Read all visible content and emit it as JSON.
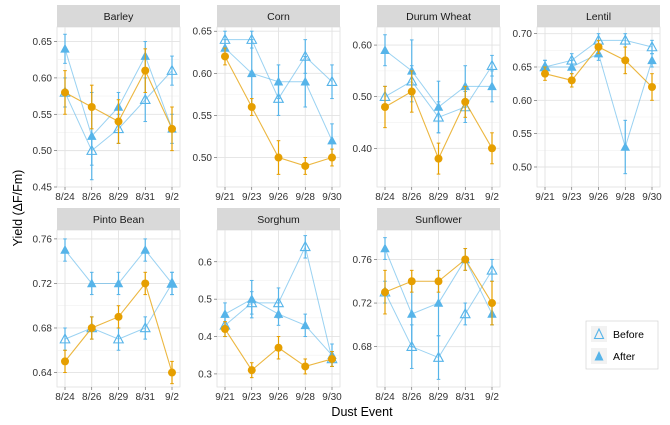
{
  "chart_data": {
    "type": "line",
    "xlabel": "Dust Event",
    "ylabel": "Yield (ΔF/Fm)",
    "legend": {
      "placement": "bottom-right",
      "entries": [
        {
          "name": "Before",
          "marker": "open-triangle"
        },
        {
          "name": "After",
          "marker": "filled-triangle"
        }
      ]
    },
    "colors": {
      "treatment": "#56b4e9",
      "control": "#e69f00"
    },
    "panels": [
      {
        "title": "Barley",
        "x": [
          "8/24",
          "8/26",
          "8/29",
          "8/31",
          "9/2"
        ],
        "ylim": [
          0.45,
          0.67
        ],
        "yticks": [
          0.45,
          0.5,
          0.55,
          0.6,
          0.65
        ],
        "yfmt": 2,
        "series": [
          {
            "name": "Before",
            "marker": "open-triangle",
            "values": [
              0.58,
              0.5,
              0.53,
              0.57,
              0.61
            ],
            "err": [
              0.02,
              0.02,
              0.02,
              0.03,
              0.02
            ]
          },
          {
            "name": "After",
            "marker": "filled-triangle",
            "values": [
              0.64,
              0.52,
              0.56,
              0.63,
              0.53
            ],
            "err": [
              0.02,
              0.06,
              0.02,
              0.02,
              0.02
            ]
          },
          {
            "marker": "circle",
            "values": [
              0.58,
              0.56,
              0.54,
              0.61,
              0.53
            ],
            "err": [
              0.03,
              0.03,
              0.03,
              0.03,
              0.03
            ]
          }
        ]
      },
      {
        "title": "Corn",
        "x": [
          "9/21",
          "9/23",
          "9/26",
          "9/28",
          "9/30"
        ],
        "ylim": [
          0.465,
          0.655
        ],
        "yticks": [
          0.5,
          0.55,
          0.6,
          0.65
        ],
        "yfmt": 2,
        "series": [
          {
            "name": "Before",
            "marker": "open-triangle",
            "values": [
              0.64,
              0.64,
              0.57,
              0.62,
              0.59
            ],
            "err": [
              0.01,
              0.01,
              0.02,
              0.02,
              0.02
            ]
          },
          {
            "name": "After",
            "marker": "filled-triangle",
            "values": [
              0.63,
              0.6,
              0.59,
              0.59,
              0.52
            ],
            "err": [
              0.01,
              0.04,
              0.02,
              0.03,
              0.02
            ]
          },
          {
            "marker": "circle",
            "values": [
              0.62,
              0.56,
              0.5,
              0.49,
              0.5
            ],
            "err": [
              0.01,
              0.01,
              0.02,
              0.01,
              0.01
            ]
          }
        ]
      },
      {
        "title": "Durum Wheat",
        "x": [
          "8/24",
          "8/26",
          "8/29",
          "8/31",
          "9/2"
        ],
        "ylim": [
          0.325,
          0.635
        ],
        "yticks": [
          0.4,
          0.5,
          0.6
        ],
        "yfmt": 2,
        "series": [
          {
            "name": "Before",
            "marker": "open-triangle",
            "values": [
              0.5,
              0.53,
              0.46,
              0.48,
              0.56
            ],
            "err": [
              0.02,
              0.03,
              0.03,
              0.03,
              0.02
            ]
          },
          {
            "name": "After",
            "marker": "filled-triangle",
            "values": [
              0.59,
              0.55,
              0.48,
              0.52,
              0.52
            ],
            "err": [
              0.03,
              0.06,
              0.05,
              0.04,
              0.03
            ]
          },
          {
            "marker": "circle",
            "values": [
              0.48,
              0.51,
              0.38,
              0.49,
              0.4
            ],
            "err": [
              0.04,
              0.04,
              0.03,
              0.03,
              0.03
            ]
          }
        ]
      },
      {
        "title": "Lentil",
        "x": [
          "9/21",
          "9/23",
          "9/26",
          "9/28",
          "9/30"
        ],
        "ylim": [
          0.47,
          0.71
        ],
        "yticks": [
          0.5,
          0.55,
          0.6,
          0.65,
          0.7
        ],
        "yfmt": 2,
        "series": [
          {
            "name": "Before",
            "marker": "open-triangle",
            "values": [
              0.65,
              0.66,
              0.69,
              0.69,
              0.68
            ],
            "err": [
              0.01,
              0.01,
              0.01,
              0.01,
              0.01
            ]
          },
          {
            "name": "After",
            "marker": "filled-triangle",
            "values": [
              0.65,
              0.65,
              0.67,
              0.53,
              0.66
            ],
            "err": [
              0.01,
              0.01,
              0.01,
              0.04,
              0.01
            ]
          },
          {
            "marker": "circle",
            "values": [
              0.64,
              0.63,
              0.68,
              0.66,
              0.62
            ],
            "err": [
              0.01,
              0.01,
              0.01,
              0.02,
              0.02
            ]
          }
        ]
      },
      {
        "title": "Pinto Bean",
        "x": [
          "8/24",
          "8/26",
          "8/29",
          "8/31",
          "9/2"
        ],
        "ylim": [
          0.627,
          0.768
        ],
        "yticks": [
          0.64,
          0.68,
          0.72,
          0.76
        ],
        "yfmt": 2,
        "series": [
          {
            "name": "Before",
            "marker": "open-triangle",
            "values": [
              0.67,
              0.68,
              0.67,
              0.68,
              0.72
            ],
            "err": [
              0.01,
              0.01,
              0.01,
              0.01,
              0.01
            ]
          },
          {
            "name": "After",
            "marker": "filled-triangle",
            "values": [
              0.75,
              0.72,
              0.72,
              0.75,
              0.72
            ],
            "err": [
              0.01,
              0.01,
              0.01,
              0.01,
              0.01
            ]
          },
          {
            "marker": "circle",
            "values": [
              0.65,
              0.68,
              0.69,
              0.72,
              0.64
            ],
            "err": [
              0.01,
              0.01,
              0.01,
              0.01,
              0.01
            ]
          }
        ]
      },
      {
        "title": "Sorghum",
        "x": [
          "9/21",
          "9/23",
          "9/26",
          "9/28",
          "9/30"
        ],
        "ylim": [
          0.265,
          0.685
        ],
        "yticks": [
          0.3,
          0.4,
          0.5,
          0.6
        ],
        "yfmt": 1,
        "series": [
          {
            "name": "Before",
            "marker": "open-triangle",
            "values": [
              0.43,
              0.49,
              0.49,
              0.64,
              0.34
            ],
            "err": [
              0.03,
              0.03,
              0.04,
              0.03,
              0.02
            ]
          },
          {
            "name": "After",
            "marker": "filled-triangle",
            "values": [
              0.46,
              0.5,
              0.46,
              0.43,
              0.35
            ],
            "err": [
              0.03,
              0.05,
              0.03,
              0.03,
              0.03
            ]
          },
          {
            "marker": "circle",
            "values": [
              0.42,
              0.31,
              0.37,
              0.32,
              0.34
            ],
            "err": [
              0.02,
              0.02,
              0.03,
              0.02,
              0.02
            ]
          }
        ]
      },
      {
        "title": "Sunflower",
        "x": [
          "8/24",
          "8/26",
          "8/29",
          "8/31",
          "9/2"
        ],
        "ylim": [
          0.643,
          0.787
        ],
        "yticks": [
          0.68,
          0.72,
          0.76
        ],
        "yfmt": 2,
        "series": [
          {
            "name": "Before",
            "marker": "open-triangle",
            "values": [
              0.73,
              0.68,
              0.67,
              0.71,
              0.75
            ],
            "err": [
              0.01,
              0.02,
              0.02,
              0.01,
              0.01
            ]
          },
          {
            "name": "After",
            "marker": "filled-triangle",
            "values": [
              0.77,
              0.71,
              0.72,
              0.76,
              0.71
            ],
            "err": [
              0.01,
              0.03,
              0.03,
              0.01,
              0.01
            ]
          },
          {
            "marker": "circle",
            "values": [
              0.73,
              0.74,
              0.74,
              0.76,
              0.72
            ],
            "err": [
              0.02,
              0.01,
              0.01,
              0.01,
              0.02
            ]
          }
        ]
      }
    ]
  }
}
